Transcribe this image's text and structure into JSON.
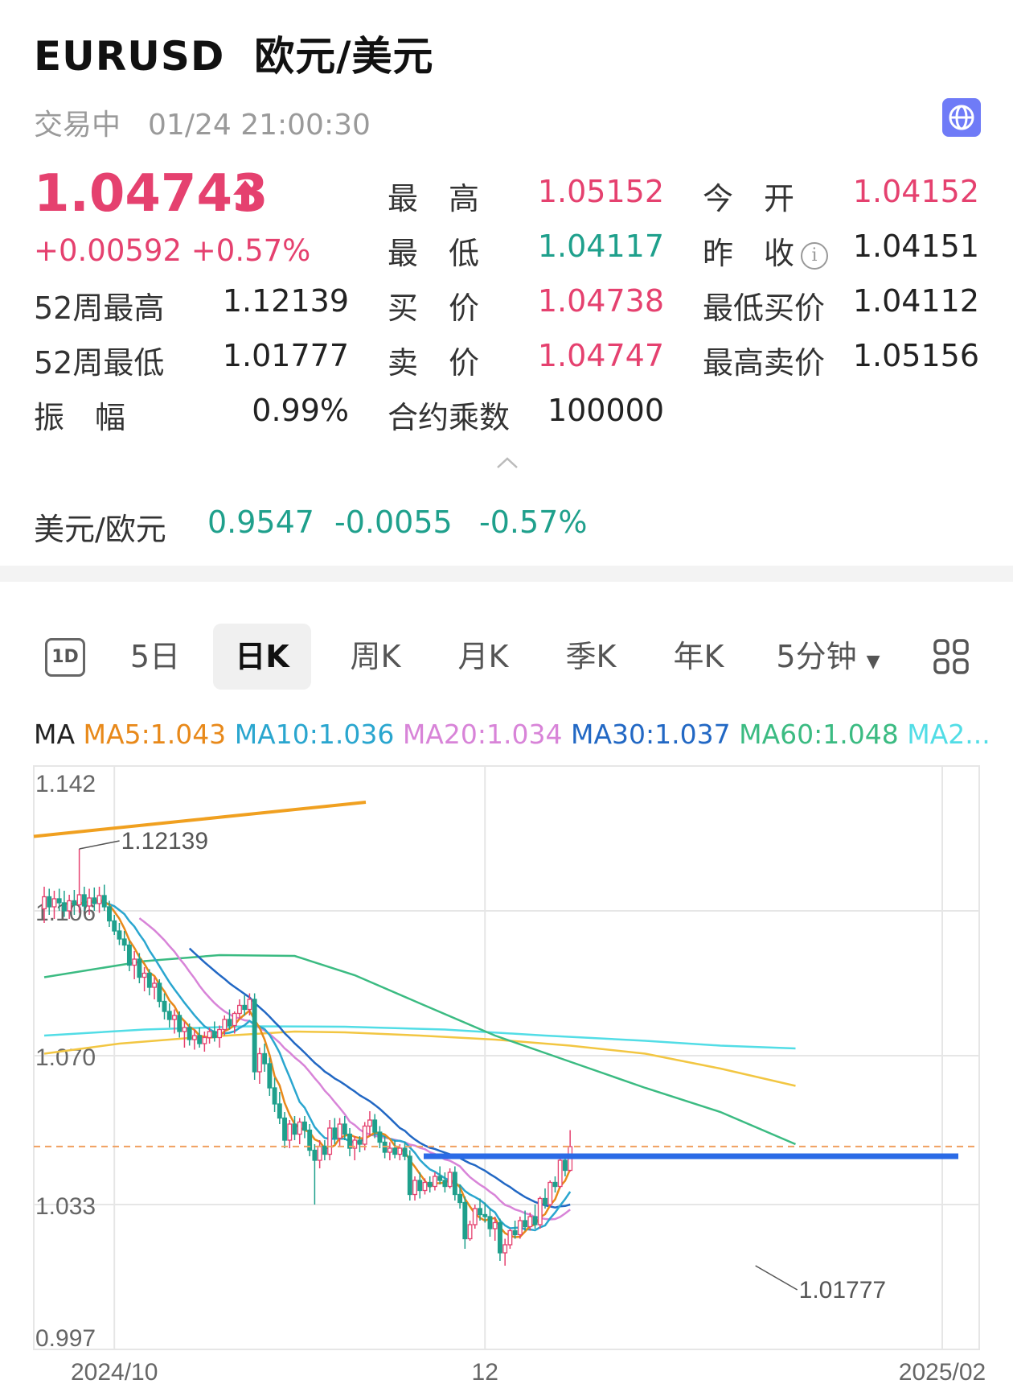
{
  "header": {
    "symbol": "EURUSD",
    "name": "欧元/美元",
    "status": "交易中",
    "timestamp": "01/24 21:00:30"
  },
  "quote": {
    "price": "1.04743",
    "change": "+0.00592",
    "change_pct": "+0.57%"
  },
  "stats": {
    "high_label": "最　高",
    "high": "1.05152",
    "open_label": "今　开",
    "open": "1.04152",
    "low_label": "最　低",
    "low": "1.04117",
    "prev_close_label": "昨　收",
    "prev_close": "1.04151",
    "w52_high_label": "52周最高",
    "w52_high": "1.12139",
    "bid_label": "买　价",
    "bid": "1.04738",
    "min_bid_label": "最低买价",
    "min_bid": "1.04112",
    "w52_low_label": "52周最低",
    "w52_low": "1.01777",
    "ask_label": "卖　价",
    "ask": "1.04747",
    "max_ask_label": "最高卖价",
    "max_ask": "1.05156",
    "amplitude_label": "振　幅",
    "amplitude": "0.99%",
    "multiplier_label": "合约乘数",
    "multiplier": "100000"
  },
  "inverse": {
    "label": "美元/欧元",
    "price": "0.9547",
    "change": "-0.0055",
    "change_pct": "-0.57%"
  },
  "tabs": [
    {
      "label": "1D"
    },
    {
      "label": "5日"
    },
    {
      "label": "日K"
    },
    {
      "label": "周K"
    },
    {
      "label": "月K"
    },
    {
      "label": "季K"
    },
    {
      "label": "年K"
    },
    {
      "label": "5分钟"
    }
  ],
  "ma_legend": {
    "title": "MA",
    "ma5": "MA5:1.043",
    "ma10": "MA10:1.036",
    "ma20": "MA20:1.034",
    "ma30": "MA30:1.037",
    "ma60": "MA60:1.048",
    "ma_more": "MA2..."
  },
  "colors": {
    "up": "#e5416f",
    "down": "#1fa08c",
    "ma5": "#e8891a",
    "ma10": "#2aa6cf",
    "ma20": "#d884d8",
    "ma30": "#2268c4",
    "ma60": "#3bbb82",
    "ma120": "#f2c642",
    "ma250": "#52dde6",
    "trendline": "#f0a020",
    "support_line": "#2b6be6"
  },
  "icons": [
    "globe-icon",
    "up-arrow-icon",
    "info-icon",
    "chevron-up-icon",
    "dropdown-icon",
    "grid-icon"
  ],
  "chart_data": {
    "type": "candlestick",
    "y_ticks": [
      "1.142",
      "1.106",
      "1.070",
      "1.033",
      "0.997"
    ],
    "x_ticks": [
      "2024/10",
      "12",
      "2025/02"
    ],
    "ylim": [
      0.997,
      1.142
    ],
    "annotations": {
      "high_label": "1.12139",
      "low_label": "1.01777"
    },
    "current_price_line": 1.04743,
    "support_line": 1.045,
    "ohlc": [
      [
        1.1065,
        1.112,
        1.103,
        1.1095
      ],
      [
        1.1095,
        1.1115,
        1.105,
        1.107
      ],
      [
        1.107,
        1.111,
        1.104,
        1.109
      ],
      [
        1.109,
        1.1115,
        1.106,
        1.108
      ],
      [
        1.108,
        1.111,
        1.1045,
        1.106
      ],
      [
        1.106,
        1.11,
        1.104,
        1.1085
      ],
      [
        1.1085,
        1.1112,
        1.105,
        1.1075
      ],
      [
        1.1075,
        1.1214,
        1.1055,
        1.11
      ],
      [
        1.11,
        1.112,
        1.106,
        1.1072
      ],
      [
        1.1072,
        1.1115,
        1.105,
        1.1092
      ],
      [
        1.1092,
        1.1118,
        1.106,
        1.1078
      ],
      [
        1.1078,
        1.112,
        1.1055,
        1.1098
      ],
      [
        1.1098,
        1.1125,
        1.106,
        1.107
      ],
      [
        1.107,
        1.1085,
        1.102,
        1.1035
      ],
      [
        1.1035,
        1.105,
        1.1,
        1.101
      ],
      [
        1.101,
        1.103,
        1.0975,
        1.099
      ],
      [
        1.099,
        1.101,
        1.096,
        1.0975
      ],
      [
        1.0975,
        1.0985,
        1.091,
        1.0925
      ],
      [
        1.0925,
        1.096,
        1.089,
        1.094
      ],
      [
        1.094,
        1.0955,
        1.088,
        1.0895
      ],
      [
        1.0895,
        1.092,
        1.086,
        1.0905
      ],
      [
        1.0905,
        1.0915,
        1.085,
        1.087
      ],
      [
        1.087,
        1.0895,
        1.084,
        1.088
      ],
      [
        1.088,
        1.089,
        1.082,
        1.0835
      ],
      [
        1.0835,
        1.0855,
        1.079,
        1.081
      ],
      [
        1.081,
        1.083,
        1.077,
        1.079
      ],
      [
        1.079,
        1.0815,
        1.0755,
        1.08
      ],
      [
        1.08,
        1.081,
        1.0745,
        1.076
      ],
      [
        1.076,
        1.0785,
        1.072,
        1.077
      ],
      [
        1.077,
        1.078,
        1.0725,
        1.074
      ],
      [
        1.074,
        1.0765,
        1.0715,
        1.075
      ],
      [
        1.075,
        1.077,
        1.072,
        1.073
      ],
      [
        1.073,
        1.076,
        1.071,
        1.0745
      ],
      [
        1.0745,
        1.077,
        1.073,
        1.076
      ],
      [
        1.076,
        1.0785,
        1.0735,
        1.0745
      ],
      [
        1.0745,
        1.0775,
        1.072,
        1.0765
      ],
      [
        1.0765,
        1.08,
        1.075,
        1.079
      ],
      [
        1.079,
        1.0815,
        1.0765,
        1.0775
      ],
      [
        1.0775,
        1.081,
        1.0755,
        1.0805
      ],
      [
        1.0805,
        1.084,
        1.079,
        1.0825
      ],
      [
        1.0825,
        1.085,
        1.08,
        1.0815
      ],
      [
        1.0815,
        1.0855,
        1.08,
        1.084
      ],
      [
        1.084,
        1.0855,
        1.064,
        1.066
      ],
      [
        1.066,
        1.072,
        1.063,
        1.0705
      ],
      [
        1.0705,
        1.073,
        1.066,
        1.068
      ],
      [
        1.068,
        1.0695,
        1.06,
        1.062
      ],
      [
        1.062,
        1.0645,
        1.056,
        1.058
      ],
      [
        1.058,
        1.061,
        1.053,
        1.0545
      ],
      [
        1.0545,
        1.056,
        1.047,
        1.049
      ],
      [
        1.049,
        1.054,
        1.047,
        1.053
      ],
      [
        1.053,
        1.055,
        1.049,
        1.0505
      ],
      [
        1.0505,
        1.0545,
        1.048,
        1.0535
      ],
      [
        1.0535,
        1.055,
        1.0495,
        1.0515
      ],
      [
        1.0515,
        1.053,
        1.045,
        1.0465
      ],
      [
        1.0465,
        1.048,
        1.033,
        1.044
      ],
      [
        1.044,
        1.049,
        1.042,
        1.0475
      ],
      [
        1.0475,
        1.049,
        1.044,
        1.0455
      ],
      [
        1.0455,
        1.054,
        1.044,
        1.052
      ],
      [
        1.052,
        1.0545,
        1.048,
        1.0495
      ],
      [
        1.0495,
        1.0545,
        1.0475,
        1.053
      ],
      [
        1.053,
        1.055,
        1.049,
        1.0505
      ],
      [
        1.0505,
        1.052,
        1.045,
        1.047
      ],
      [
        1.047,
        1.05,
        1.044,
        1.049
      ],
      [
        1.049,
        1.05,
        1.046,
        1.048
      ],
      [
        1.048,
        1.0535,
        1.0465,
        1.0525
      ],
      [
        1.0525,
        1.0562,
        1.05,
        1.054
      ],
      [
        1.054,
        1.0555,
        1.0495,
        1.051
      ],
      [
        1.051,
        1.0525,
        1.047,
        1.0485
      ],
      [
        1.0485,
        1.05,
        1.0445,
        1.046
      ],
      [
        1.046,
        1.0485,
        1.044,
        1.047
      ],
      [
        1.047,
        1.049,
        1.0445,
        1.0455
      ],
      [
        1.0455,
        1.048,
        1.044,
        1.047
      ],
      [
        1.047,
        1.0485,
        1.044,
        1.045
      ],
      [
        1.045,
        1.0465,
        1.034,
        1.0355
      ],
      [
        1.0355,
        1.04,
        1.034,
        1.039
      ],
      [
        1.039,
        1.041,
        1.0345,
        1.0365
      ],
      [
        1.0365,
        1.0395,
        1.0355,
        1.0385
      ],
      [
        1.0385,
        1.04,
        1.036,
        1.0375
      ],
      [
        1.0375,
        1.041,
        1.0365,
        1.04
      ],
      [
        1.04,
        1.0425,
        1.038,
        1.039
      ],
      [
        1.039,
        1.041,
        1.036,
        1.0375
      ],
      [
        1.0375,
        1.042,
        1.037,
        1.041
      ],
      [
        1.041,
        1.0425,
        1.034,
        1.0355
      ],
      [
        1.0355,
        1.038,
        1.032,
        1.0335
      ],
      [
        1.0335,
        1.035,
        1.022,
        1.0245
      ],
      [
        1.0245,
        1.029,
        1.024,
        1.028
      ],
      [
        1.028,
        1.033,
        1.027,
        1.032
      ],
      [
        1.032,
        1.0345,
        1.029,
        1.0305
      ],
      [
        1.0305,
        1.0335,
        1.0285,
        1.03
      ],
      [
        1.03,
        1.032,
        1.025,
        1.027
      ],
      [
        1.027,
        1.03,
        1.024,
        1.0285
      ],
      [
        1.0285,
        1.0295,
        1.019,
        1.021
      ],
      [
        1.021,
        1.0245,
        1.0178,
        1.023
      ],
      [
        1.023,
        1.027,
        1.022,
        1.0265
      ],
      [
        1.0265,
        1.029,
        1.0245,
        1.0255
      ],
      [
        1.0255,
        1.03,
        1.0245,
        1.029
      ],
      [
        1.029,
        1.0315,
        1.0265,
        1.0275
      ],
      [
        1.0275,
        1.031,
        1.0265,
        1.03
      ],
      [
        1.03,
        1.033,
        1.027,
        1.028
      ],
      [
        1.028,
        1.035,
        1.027,
        1.0345
      ],
      [
        1.0345,
        1.037,
        1.032,
        1.033
      ],
      [
        1.033,
        1.039,
        1.0325,
        1.0385
      ],
      [
        1.0385,
        1.04,
        1.036,
        1.0375
      ],
      [
        1.0375,
        1.045,
        1.037,
        1.044
      ],
      [
        1.044,
        1.045,
        1.04,
        1.0415
      ],
      [
        1.0415,
        1.0515,
        1.0412,
        1.0474
      ]
    ]
  }
}
